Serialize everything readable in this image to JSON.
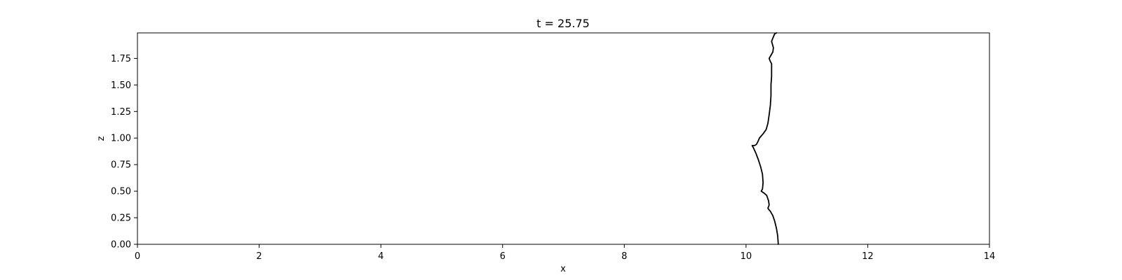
{
  "chart_data": {
    "type": "line",
    "title": "t = 25.75",
    "xlabel": "x",
    "ylabel": "z",
    "xlim": [
      0,
      14
    ],
    "ylim": [
      0,
      1.99
    ],
    "xticks": [
      0,
      2,
      4,
      6,
      8,
      10,
      12,
      14
    ],
    "xtick_labels": [
      "0",
      "2",
      "4",
      "6",
      "8",
      "10",
      "12",
      "14"
    ],
    "yticks": [
      0,
      0.25,
      0.5,
      0.75,
      1.0,
      1.25,
      1.5,
      1.75
    ],
    "ytick_labels": [
      "0.00",
      "0.25",
      "0.50",
      "0.75",
      "1.00",
      "1.25",
      "1.50",
      "1.75"
    ],
    "grid": false,
    "line_color": "#000000",
    "series": [
      {
        "x": [
          10.53,
          10.52,
          10.5,
          10.47,
          10.44,
          10.4,
          10.37,
          10.36,
          10.38,
          10.37,
          10.34,
          10.3,
          10.25,
          10.27,
          10.28,
          10.27,
          10.24,
          10.2,
          10.16,
          10.12,
          10.1,
          10.14,
          10.17,
          10.19,
          10.22,
          10.28,
          10.33,
          10.36,
          10.38,
          10.4,
          10.41,
          10.41,
          10.42,
          10.42,
          10.42,
          10.4,
          10.38,
          10.41,
          10.44,
          10.45,
          10.42,
          10.44,
          10.47,
          10.5
        ],
        "y": [
          0.0,
          0.08,
          0.15,
          0.22,
          0.27,
          0.31,
          0.33,
          0.34,
          0.37,
          0.41,
          0.46,
          0.48,
          0.5,
          0.52,
          0.58,
          0.66,
          0.73,
          0.8,
          0.86,
          0.91,
          0.93,
          0.93,
          0.94,
          0.96,
          1.0,
          1.04,
          1.08,
          1.14,
          1.22,
          1.31,
          1.4,
          1.5,
          1.58,
          1.65,
          1.7,
          1.72,
          1.75,
          1.78,
          1.81,
          1.85,
          1.91,
          1.94,
          1.98,
          1.99
        ]
      }
    ]
  }
}
